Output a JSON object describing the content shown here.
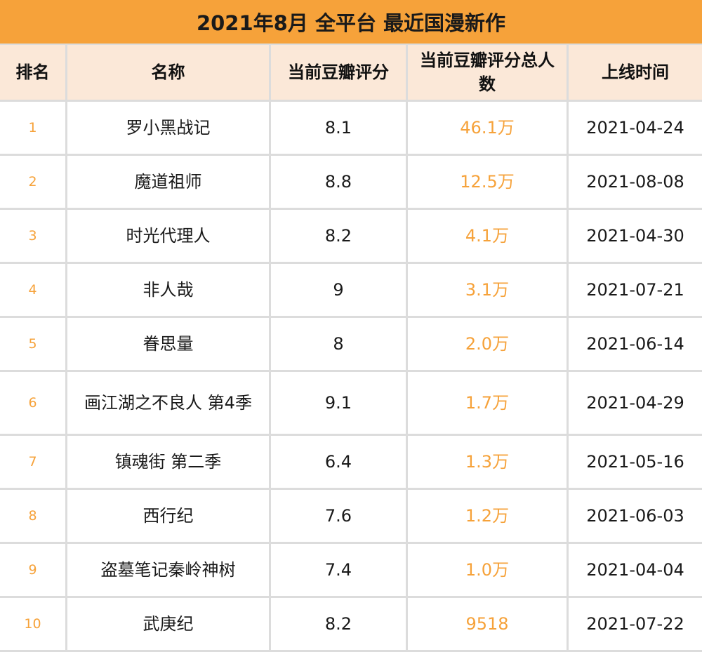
{
  "title": "2021年8月 全平台 最近国漫新作",
  "headers": [
    "排名",
    "名称",
    "当前豆瓣评分",
    "当前豆瓣评分总人数",
    "上线时间"
  ],
  "rows": [
    {
      "rank": "1",
      "name": "罗小黑战记",
      "score": "8.1",
      "votes": "46.1万",
      "date": "2021-04-24"
    },
    {
      "rank": "2",
      "name": "魔道祖师",
      "score": "8.8",
      "votes": "12.5万",
      "date": "2021-08-08"
    },
    {
      "rank": "3",
      "name": "时光代理人",
      "score": "8.2",
      "votes": "4.1万",
      "date": "2021-04-30"
    },
    {
      "rank": "4",
      "name": "非人哉",
      "score": "9",
      "votes": "3.1万",
      "date": "2021-07-21"
    },
    {
      "rank": "5",
      "name": "眷思量",
      "score": "8",
      "votes": "2.0万",
      "date": "2021-06-14"
    },
    {
      "rank": "6",
      "name": "画江湖之不良人 第4季",
      "score": "9.1",
      "votes": "1.7万",
      "date": "2021-04-29"
    },
    {
      "rank": "7",
      "name": "镇魂街 第二季",
      "score": "6.4",
      "votes": "1.3万",
      "date": "2021-05-16"
    },
    {
      "rank": "8",
      "name": "西行纪",
      "score": "7.6",
      "votes": "1.2万",
      "date": "2021-06-03"
    },
    {
      "rank": "9",
      "name": "盗墓笔记秦岭神树",
      "score": "7.4",
      "votes": "1.0万",
      "date": "2021-04-04"
    },
    {
      "rank": "10",
      "name": "武庚纪",
      "score": "8.2",
      "votes": "9518",
      "date": "2021-07-22"
    }
  ],
  "colors": {
    "accent": "#f6a23a",
    "header_bg": "#fbe8d8",
    "grid": "#dcdcdc"
  }
}
